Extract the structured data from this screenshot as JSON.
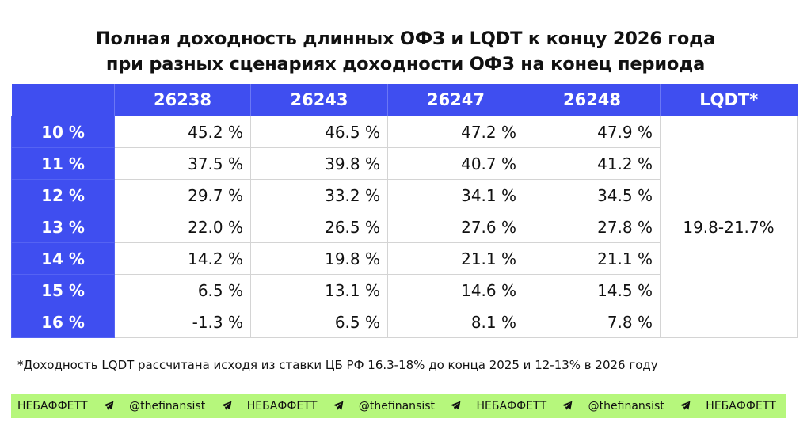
{
  "title": {
    "line1": "Полная доходность длинных ОФЗ и LQDT к концу 2026 года",
    "line2": "при разных сценариях доходности ОФЗ на конец периода"
  },
  "table": {
    "columns": [
      "",
      "26238",
      "26243",
      "26247",
      "26248",
      "LQDT*"
    ],
    "rows": [
      {
        "scenario": "10 %",
        "values": [
          "45.2 %",
          "46.5 %",
          "47.2 %",
          "47.9 %"
        ]
      },
      {
        "scenario": "11 %",
        "values": [
          "37.5 %",
          "39.8 %",
          "40.7 %",
          "41.2 %"
        ]
      },
      {
        "scenario": "12 %",
        "values": [
          "29.7 %",
          "33.2 %",
          "34.1 %",
          "34.5 %"
        ]
      },
      {
        "scenario": "13 %",
        "values": [
          "22.0 %",
          "26.5 %",
          "27.6 %",
          "27.8 %"
        ]
      },
      {
        "scenario": "14 %",
        "values": [
          "14.2 %",
          "19.8 %",
          "21.1 %",
          "21.1 %"
        ]
      },
      {
        "scenario": "15 %",
        "values": [
          "6.5 %",
          "13.1 %",
          "14.6 %",
          "14.5 %"
        ]
      },
      {
        "scenario": "16 %",
        "values": [
          "-1.3 %",
          "6.5 %",
          "8.1 %",
          "7.8 %"
        ]
      }
    ],
    "lqdt_value": "19.8-21.7%"
  },
  "footnote": "*Доходность LQDT рассчитана исходя из ставки ЦБ РФ 16.3-18% до конца 2025 и 12-13% в 2026 году",
  "ticker": {
    "items": [
      "НЕБАФФЕТТ",
      "@thefinansist",
      "НЕБАФФЕТТ",
      "@thefinansist",
      "НЕБАФФЕТТ",
      "@thefinansist",
      "НЕБАФФЕТТ"
    ],
    "separator_icon": "telegram-icon"
  },
  "colors": {
    "header_bg": "#3f4ef0",
    "ticker_bg": "#b6f77c",
    "text": "#111111"
  }
}
